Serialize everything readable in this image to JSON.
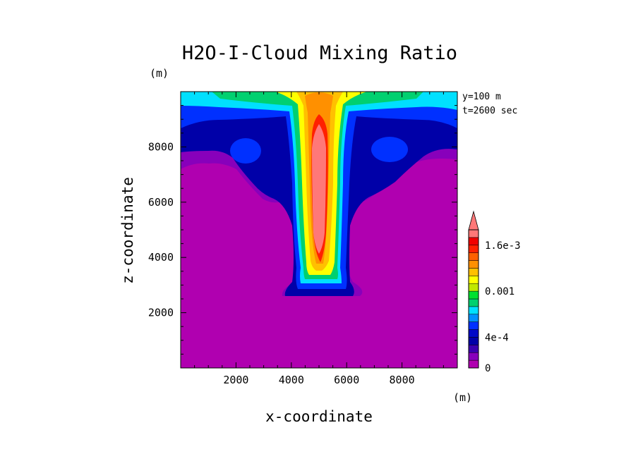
{
  "chart_data": {
    "type": "heatmap",
    "title": "H2O-I-Cloud Mixing Ratio",
    "xlabel": "x-coordinate",
    "ylabel": "z-coordinate",
    "x_unit": "(m)",
    "y_unit": "(m)",
    "info_lines": [
      "y=100 m",
      "t=2600 sec"
    ],
    "xlim": [
      0,
      10000
    ],
    "ylim": [
      0,
      10000
    ],
    "x_ticks": [
      2000,
      4000,
      6000,
      8000
    ],
    "x_tick_labels": [
      "2000",
      "4000",
      "6000",
      "8000"
    ],
    "y_ticks": [
      2000,
      4000,
      6000,
      8000
    ],
    "y_tick_labels": [
      "2000",
      "4000",
      "6000",
      "8000"
    ],
    "colorbar": {
      "levels": [
        0,
        0.0001,
        0.0002,
        0.0003,
        0.0004,
        0.0005,
        0.0006,
        0.0007,
        0.0008,
        0.0009,
        0.001,
        0.0011,
        0.0012,
        0.0013,
        0.0014,
        0.0015,
        0.0016,
        0.0017,
        0.0018
      ],
      "tick_labels": [
        {
          "value": 0,
          "label": "0"
        },
        {
          "value": 0.0004,
          "label": "4e-4"
        },
        {
          "value": 0.001,
          "label": "0.001"
        },
        {
          "value": 0.0016,
          "label": "1.6e-3"
        }
      ],
      "colors": [
        "#b000b0",
        "#8800bb",
        "#3a00b0",
        "#0000a8",
        "#0008c8",
        "#0030ff",
        "#0090ff",
        "#00e0ff",
        "#00d070",
        "#00e030",
        "#c0e800",
        "#ffff00",
        "#ffc000",
        "#ff9000",
        "#ff6000",
        "#ff2000",
        "#f00000",
        "#ff7878"
      ],
      "extend": "max"
    },
    "field_description_levels": "ice cloud mixing ratio, max ~1.8e-3 in central column near x=5000, z=4000-8700; anvil spreading near top z~9000-9750"
  }
}
